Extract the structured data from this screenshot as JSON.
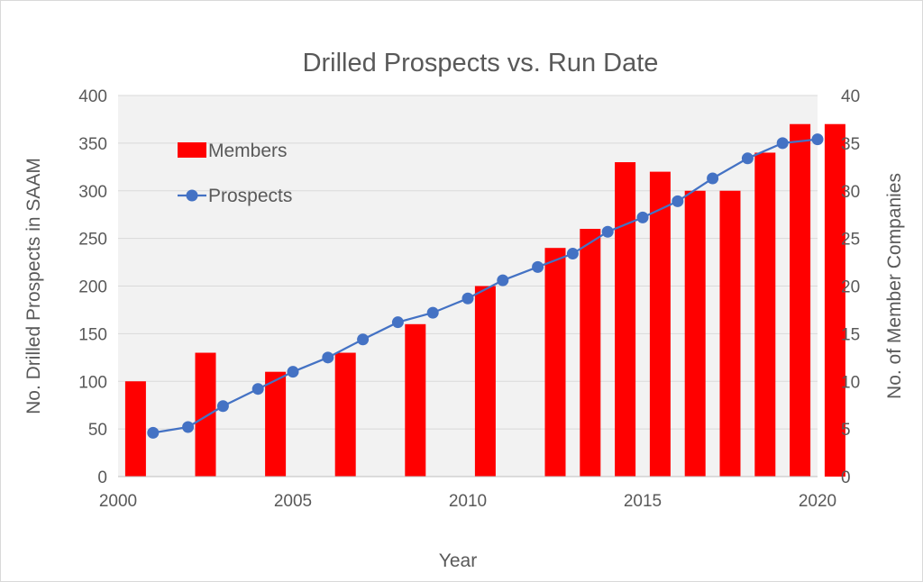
{
  "chart_data": {
    "type": "bar+line",
    "title": "Drilled Prospects vs. Run Date",
    "xlabel": "Year",
    "ylabel_left": "No. Drilled Prospects in SAAM",
    "ylabel_right": "No. of Member Companies",
    "xlim": [
      2000,
      2020
    ],
    "ylim_left": [
      0,
      400
    ],
    "ylim_right": [
      0,
      40
    ],
    "x_ticks": [
      "2000",
      "2005",
      "2010",
      "2015",
      "2020"
    ],
    "y_ticks_left": [
      "0",
      "50",
      "100",
      "150",
      "200",
      "250",
      "300",
      "350",
      "400"
    ],
    "y_ticks_right": [
      "0",
      "5",
      "10",
      "15",
      "20",
      "25",
      "30",
      "35",
      "40"
    ],
    "grid": "horizontal",
    "plot_background": "#f2f2f2",
    "legend": {
      "placement": "top-left",
      "entries": [
        "Members",
        "Prospects"
      ]
    },
    "series": [
      {
        "name": "Members",
        "type": "bar",
        "axis": "right",
        "color": "#ff0000",
        "x": [
          2000.5,
          2002.5,
          2004.5,
          2006.5,
          2008.5,
          2010.5,
          2012.5,
          2013.5,
          2014.5,
          2015.5,
          2016.5,
          2017.5,
          2018.5,
          2019.5,
          2020.5
        ],
        "values": [
          10,
          13,
          11,
          13,
          16,
          20,
          24,
          26,
          33,
          32,
          30,
          30,
          34,
          37,
          37
        ]
      },
      {
        "name": "Prospects",
        "type": "line",
        "axis": "left",
        "color": "#4472c4",
        "x": [
          2001,
          2002,
          2003,
          2004,
          2005,
          2006,
          2007,
          2008,
          2009,
          2010,
          2011,
          2012,
          2013,
          2014,
          2015,
          2016,
          2017,
          2018,
          2019,
          2020
        ],
        "values": [
          46,
          52,
          74,
          92,
          110,
          125,
          144,
          162,
          172,
          187,
          206,
          220,
          234,
          257,
          272,
          289,
          313,
          334,
          350,
          354
        ]
      }
    ]
  }
}
